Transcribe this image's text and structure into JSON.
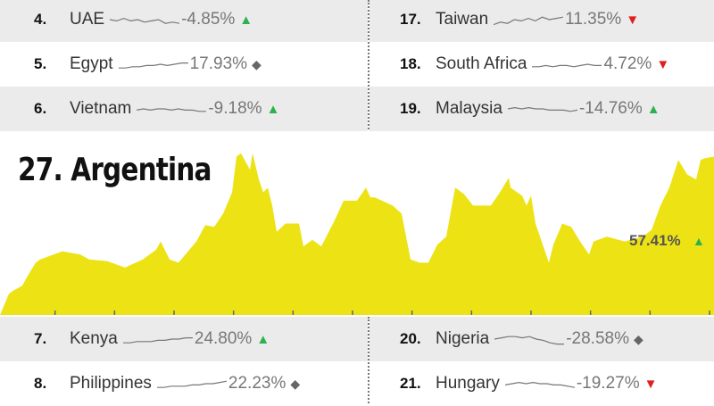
{
  "rows_top_left": [
    {
      "rank": "4.",
      "name": "UAE",
      "pct": "-4.85%",
      "marker": "up",
      "trend": [
        5,
        6,
        4,
        6,
        5,
        7,
        6,
        5,
        8,
        7,
        8
      ]
    },
    {
      "rank": "5.",
      "name": "Egypt",
      "pct": "17.93%",
      "marker": "flat",
      "trend": [
        8,
        8,
        7,
        7,
        6,
        6,
        5,
        6,
        5,
        4,
        4
      ]
    },
    {
      "rank": "6.",
      "name": "Vietnam",
      "pct": "-9.18%",
      "marker": "up",
      "trend": [
        6,
        5,
        6,
        5,
        5,
        6,
        5,
        6,
        6,
        7,
        7
      ]
    }
  ],
  "rows_top_right": [
    {
      "rank": "17.",
      "name": "Taiwan",
      "pct": "11.35%",
      "marker": "down",
      "trend": [
        9,
        7,
        8,
        5,
        6,
        4,
        6,
        3,
        5,
        4,
        3
      ]
    },
    {
      "rank": "18.",
      "name": "South Africa",
      "pct": "4.72%",
      "marker": "down",
      "trend": [
        7,
        7,
        6,
        7,
        6,
        6,
        7,
        6,
        5,
        6,
        6
      ]
    },
    {
      "rank": "19.",
      "name": "Malaysia",
      "pct": "-14.76%",
      "marker": "up",
      "trend": [
        5,
        4,
        5,
        4,
        5,
        5,
        6,
        6,
        6,
        7,
        6
      ]
    }
  ],
  "rows_bottom_left": [
    {
      "rank": "7.",
      "name": "Kenya",
      "pct": "24.80%",
      "marker": "up",
      "trend": [
        8,
        8,
        7,
        7,
        7,
        6,
        6,
        5,
        5,
        4,
        4
      ]
    },
    {
      "rank": "8.",
      "name": "Philippines",
      "pct": "22.23%",
      "marker": "flat",
      "trend": [
        8,
        8,
        7,
        7,
        7,
        6,
        6,
        5,
        5,
        4,
        3
      ]
    }
  ],
  "rows_bottom_right": [
    {
      "rank": "20.",
      "name": "Nigeria",
      "pct": "-28.58%",
      "marker": "flat",
      "trend": [
        5,
        4,
        3,
        3,
        4,
        3,
        5,
        6,
        8,
        9,
        9
      ]
    },
    {
      "rank": "21.",
      "name": "Hungary",
      "pct": "-19.27%",
      "marker": "down",
      "trend": [
        6,
        5,
        4,
        5,
        4,
        5,
        5,
        6,
        6,
        7,
        8
      ]
    }
  ],
  "marker_glyphs": {
    "up": "▲",
    "down": "▼",
    "flat": "◆"
  },
  "colors": {
    "up": "#2bb24c",
    "down": "#e02020",
    "flat": "#666666",
    "area": "#ece214",
    "row_gray": "#ebebeb"
  },
  "chart_data": {
    "type": "area",
    "title": "27. Argentina",
    "end_label": "57.41%",
    "end_marker": "up",
    "x_ticks_count": 12,
    "x_tick_labels": [],
    "note_values": "relative index, no axis printed",
    "x": [
      0,
      10,
      15,
      25,
      30,
      40,
      45,
      60,
      70,
      90,
      100,
      120,
      140,
      160,
      175,
      180,
      190,
      200,
      220,
      230,
      240,
      250,
      260,
      265,
      270,
      280,
      283,
      290,
      295,
      300,
      305,
      310,
      320,
      335,
      340,
      350,
      360,
      375,
      385,
      400,
      410,
      415,
      420,
      440,
      450,
      460,
      470,
      480,
      490,
      500,
      510,
      520,
      530,
      550,
      560,
      570,
      572,
      585,
      590,
      595,
      600,
      610,
      615,
      620,
      630,
      640,
      650,
      660,
      665,
      680,
      700,
      720,
      730,
      740,
      750,
      760,
      770,
      780,
      785,
      790,
      800
    ],
    "values": [
      0,
      13,
      15,
      18,
      23,
      32,
      34,
      37,
      39,
      37,
      34,
      33,
      29,
      34,
      40,
      45,
      34,
      32,
      45,
      55,
      54,
      62,
      75,
      97,
      99,
      89,
      99,
      83,
      75,
      78,
      67,
      51,
      56,
      56,
      42,
      46,
      42,
      58,
      70,
      70,
      78,
      72,
      72,
      67,
      62,
      34,
      32,
      32,
      43,
      48,
      78,
      74,
      67,
      67,
      75,
      84,
      78,
      73,
      67,
      73,
      56,
      40,
      32,
      43,
      56,
      54,
      45,
      37,
      45,
      48,
      45,
      48,
      52,
      67,
      78,
      95,
      86,
      83,
      95,
      96,
      97
    ]
  }
}
